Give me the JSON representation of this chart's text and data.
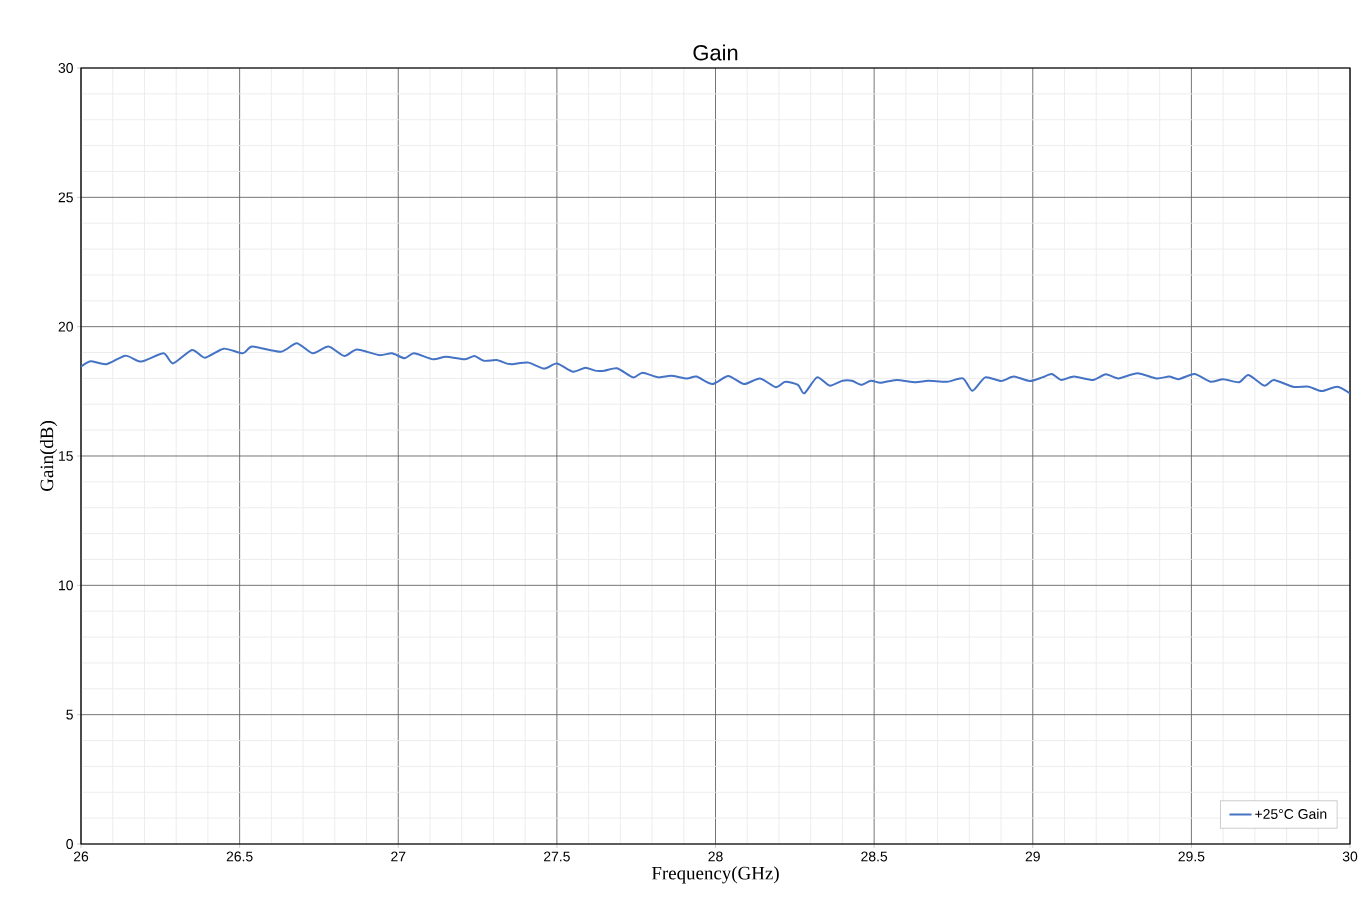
{
  "chart_data": {
    "type": "line",
    "title": "Gain",
    "xlabel": "Frequency(GHz)",
    "ylabel": "Gain(dB)",
    "xlim": [
      26,
      30
    ],
    "ylim": [
      0,
      30
    ],
    "xticks": [
      26,
      26.5,
      27,
      27.5,
      28,
      28.5,
      29,
      29.5,
      30
    ],
    "yticks": [
      0,
      5,
      10,
      15,
      20,
      25,
      30
    ],
    "grid": true,
    "legend": "bottom right",
    "marker": "none",
    "line_style": "solid",
    "series": [
      {
        "name": "+25°C Gain",
        "color": "#4472c4",
        "x": [
          26.0,
          26.03,
          26.08,
          26.14,
          26.19,
          26.26,
          26.29,
          26.35,
          26.39,
          26.45,
          26.51,
          26.54,
          26.63,
          26.68,
          26.73,
          26.78,
          26.83,
          26.87,
          26.94,
          26.98,
          27.02,
          27.05,
          27.11,
          27.15,
          27.21,
          27.24,
          27.27,
          27.31,
          27.34,
          27.36,
          27.41,
          27.46,
          27.5,
          27.55,
          27.59,
          27.62,
          27.65,
          27.69,
          27.74,
          27.77,
          27.82,
          27.86,
          27.91,
          27.94,
          27.99,
          28.04,
          28.09,
          28.14,
          28.19,
          28.22,
          28.26,
          28.28,
          28.32,
          28.36,
          28.4,
          28.43,
          28.46,
          28.49,
          28.52,
          28.57,
          28.63,
          28.67,
          28.73,
          28.78,
          28.81,
          28.85,
          28.9,
          28.94,
          28.99,
          29.03,
          29.06,
          29.09,
          29.13,
          29.19,
          29.23,
          29.27,
          29.33,
          29.39,
          29.43,
          29.46,
          29.51,
          29.56,
          29.6,
          29.65,
          29.68,
          29.73,
          29.76,
          29.82,
          29.87,
          29.91,
          29.96,
          30.0
        ],
        "values": [
          18.45,
          18.66,
          18.55,
          18.88,
          18.65,
          18.97,
          18.58,
          19.1,
          18.8,
          19.15,
          18.97,
          19.23,
          19.03,
          19.36,
          18.97,
          19.23,
          18.87,
          19.12,
          18.9,
          18.97,
          18.78,
          18.97,
          18.74,
          18.84,
          18.74,
          18.87,
          18.68,
          18.71,
          18.58,
          18.55,
          18.61,
          18.38,
          18.58,
          18.26,
          18.41,
          18.3,
          18.3,
          18.39,
          18.04,
          18.22,
          18.04,
          18.1,
          18.0,
          18.07,
          17.78,
          18.09,
          17.78,
          18.0,
          17.66,
          17.87,
          17.75,
          17.42,
          18.04,
          17.72,
          17.91,
          17.91,
          17.75,
          17.91,
          17.83,
          17.94,
          17.85,
          17.91,
          17.87,
          18.0,
          17.52,
          18.04,
          17.9,
          18.07,
          17.9,
          18.04,
          18.17,
          17.94,
          18.07,
          17.94,
          18.16,
          18.0,
          18.2,
          18.0,
          18.07,
          17.97,
          18.17,
          17.87,
          17.97,
          17.85,
          18.13,
          17.72,
          17.94,
          17.68,
          17.68,
          17.51,
          17.68,
          17.42
        ]
      }
    ]
  }
}
